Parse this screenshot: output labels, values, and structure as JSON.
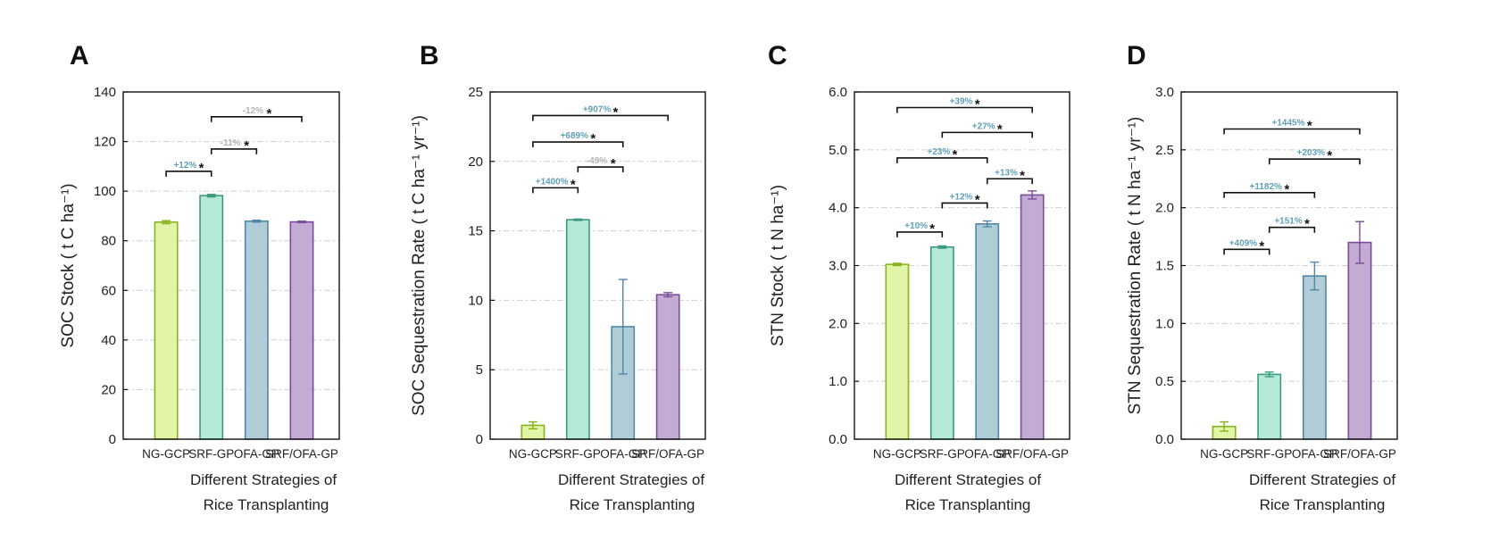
{
  "figure": {
    "panels": [
      "A",
      "B",
      "C",
      "D"
    ]
  },
  "chart_data": [
    {
      "panel": "A",
      "type": "bar",
      "categories": [
        "NG-GCP",
        "SRF-GP",
        "OFA-GP",
        "SRF/OFA-GP"
      ],
      "values": [
        87.5,
        98.2,
        87.9,
        87.6
      ],
      "errors": [
        0.6,
        0.5,
        0.4,
        0.3
      ],
      "ylabel": "SOC Stock ( t C ha⁻¹)",
      "xlabel": [
        "Different Strategies of",
        "Rice Transplanting"
      ],
      "ylim": [
        0,
        140
      ],
      "yticks": [
        0,
        20,
        40,
        60,
        80,
        100,
        120,
        140
      ],
      "ytick_labels": [
        "0",
        "20",
        "40",
        "60",
        "80",
        "100",
        "120",
        "140"
      ],
      "comparisons": [
        {
          "from": 0,
          "to": 1,
          "y": 108,
          "label": "+12%",
          "star": "*",
          "color": "#5fa0b8"
        },
        {
          "from": 1,
          "to": 2,
          "y": 117,
          "label": "-11%",
          "star": "*",
          "color": "#b5b5b5"
        },
        {
          "from": 1,
          "to": 3,
          "y": 130,
          "label": "-12%",
          "star": "*",
          "color": "#b5b5b5"
        }
      ]
    },
    {
      "panel": "B",
      "type": "bar",
      "categories": [
        "NG-GCP",
        "SRF-GP",
        "OFA-GP",
        "SRF/OFA-GP"
      ],
      "values": [
        1.0,
        15.8,
        8.1,
        10.4
      ],
      "errors": [
        0.25,
        0.05,
        3.4,
        0.15
      ],
      "ylabel": "SOC Sequestration Rate ( t C ha⁻¹ yr⁻¹)",
      "xlabel": [
        "Different Strategies of",
        "Rice Transplanting"
      ],
      "ylim": [
        0,
        25
      ],
      "yticks": [
        0,
        5,
        10,
        15,
        20,
        25
      ],
      "ytick_labels": [
        "0",
        "5",
        "10",
        "15",
        "20",
        "25"
      ],
      "comparisons": [
        {
          "from": 0,
          "to": 1,
          "y": 18.1,
          "label": "+1400%",
          "star": "*",
          "color": "#5fa0b8"
        },
        {
          "from": 1,
          "to": 2,
          "y": 19.6,
          "label": "-49%",
          "star": "*",
          "color": "#b5b5b5"
        },
        {
          "from": 0,
          "to": 2,
          "y": 21.4,
          "label": "+689%",
          "star": "*",
          "color": "#5fa0b8"
        },
        {
          "from": 0,
          "to": 3,
          "y": 23.3,
          "label": "+907%",
          "star": "*",
          "color": "#5fa0b8"
        }
      ]
    },
    {
      "panel": "C",
      "type": "bar",
      "categories": [
        "NG-GCP",
        "SRF-GP",
        "OFA-GP",
        "SRF/OFA-GP"
      ],
      "values": [
        3.02,
        3.32,
        3.72,
        4.22
      ],
      "errors": [
        0.02,
        0.02,
        0.05,
        0.07
      ],
      "ylabel": "STN Stock ( t N ha⁻¹)",
      "xlabel": [
        "Different Strategies of",
        "Rice Transplanting"
      ],
      "ylim": [
        0,
        6
      ],
      "yticks": [
        0,
        1,
        2,
        3,
        4,
        5,
        6
      ],
      "ytick_labels": [
        "0.0",
        "1.0",
        "2.0",
        "3.0",
        "4.0",
        "5.0",
        "6.0"
      ],
      "comparisons": [
        {
          "from": 0,
          "to": 1,
          "y": 3.58,
          "label": "+10%",
          "star": "*",
          "color": "#5fa0b8"
        },
        {
          "from": 1,
          "to": 2,
          "y": 4.08,
          "label": "+12%",
          "star": "*",
          "color": "#5fa0b8"
        },
        {
          "from": 2,
          "to": 3,
          "y": 4.5,
          "label": "+13%",
          "star": "*",
          "color": "#5fa0b8"
        },
        {
          "from": 0,
          "to": 2,
          "y": 4.86,
          "label": "+23%",
          "star": "*",
          "color": "#5fa0b8"
        },
        {
          "from": 1,
          "to": 3,
          "y": 5.3,
          "label": "+27%",
          "star": "*",
          "color": "#5fa0b8"
        },
        {
          "from": 0,
          "to": 3,
          "y": 5.73,
          "label": "+39%",
          "star": "*",
          "color": "#5fa0b8"
        }
      ]
    },
    {
      "panel": "D",
      "type": "bar",
      "categories": [
        "NG-GCP",
        "SRF-GP",
        "OFA-GP",
        "SRF/OFA-GP"
      ],
      "values": [
        0.11,
        0.56,
        1.41,
        1.7
      ],
      "errors": [
        0.04,
        0.02,
        0.12,
        0.18
      ],
      "ylabel": "STN Sequestration Rate ( t N ha⁻¹ yr⁻¹)",
      "xlabel": [
        "Different Strategies of",
        "Rice Transplanting"
      ],
      "ylim": [
        0,
        3
      ],
      "yticks": [
        0,
        0.5,
        1,
        1.5,
        2,
        2.5,
        3
      ],
      "ytick_labels": [
        "0.0",
        "0.5",
        "1.0",
        "1.5",
        "2.0",
        "2.5",
        "3.0"
      ],
      "comparisons": [
        {
          "from": 0,
          "to": 1,
          "y": 1.64,
          "label": "+409%",
          "star": "*",
          "color": "#5fa0b8"
        },
        {
          "from": 1,
          "to": 2,
          "y": 1.83,
          "label": "+151%",
          "star": "*",
          "color": "#5fa0b8"
        },
        {
          "from": 0,
          "to": 2,
          "y": 2.13,
          "label": "+1182%",
          "star": "*",
          "color": "#5fa0b8"
        },
        {
          "from": 1,
          "to": 3,
          "y": 2.42,
          "label": "+203%",
          "star": "*",
          "color": "#5fa0b8"
        },
        {
          "from": 0,
          "to": 3,
          "y": 2.68,
          "label": "+1445%",
          "star": "*",
          "color": "#5fa0b8"
        }
      ]
    }
  ],
  "colors": {
    "bar_fills": [
      "#e2f4a8",
      "#b4ead6",
      "#b0ccd6",
      "#c2acd4"
    ],
    "bar_strokes": [
      "#86b51e",
      "#3c9a80",
      "#4f88a8",
      "#7a4c9a"
    ],
    "grid": "#cfcfcf",
    "axis": "#111111"
  }
}
